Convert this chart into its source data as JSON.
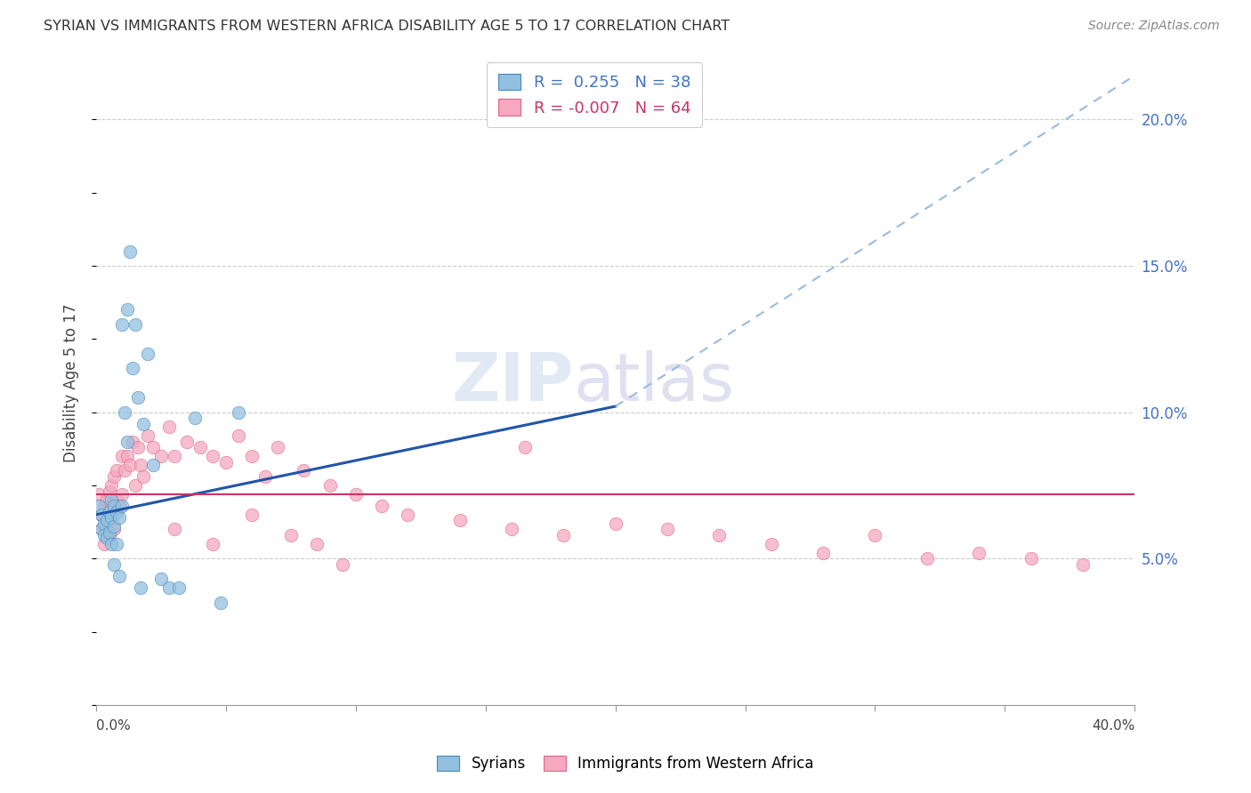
{
  "title": "SYRIAN VS IMMIGRANTS FROM WESTERN AFRICA DISABILITY AGE 5 TO 17 CORRELATION CHART",
  "source": "Source: ZipAtlas.com",
  "ylabel": "Disability Age 5 to 17",
  "y_ticks": [
    0.05,
    0.1,
    0.15,
    0.2
  ],
  "y_tick_labels": [
    "5.0%",
    "10.0%",
    "15.0%",
    "20.0%"
  ],
  "xlim": [
    0.0,
    0.4
  ],
  "ylim": [
    0.0,
    0.22
  ],
  "blue_line_start_x": 0.0,
  "blue_line_start_y": 0.065,
  "blue_line_end_solid_x": 0.2,
  "blue_line_end_solid_y": 0.102,
  "blue_line_end_dash_x": 0.4,
  "blue_line_end_dash_y": 0.215,
  "pink_line_y": 0.072,
  "blue_color": "#92c0e0",
  "pink_color": "#f5a8c0",
  "blue_edge": "#4488bb",
  "pink_edge": "#dd6688",
  "blue_line_color": "#2255aa",
  "pink_line_color": "#cc3366",
  "dashed_line_color": "#99bbdd",
  "syrians_x": [
    0.001,
    0.002,
    0.002,
    0.003,
    0.003,
    0.004,
    0.004,
    0.005,
    0.005,
    0.006,
    0.006,
    0.006,
    0.007,
    0.007,
    0.007,
    0.008,
    0.008,
    0.009,
    0.009,
    0.01,
    0.01,
    0.011,
    0.012,
    0.012,
    0.013,
    0.014,
    0.015,
    0.016,
    0.017,
    0.018,
    0.02,
    0.022,
    0.025,
    0.028,
    0.032,
    0.038,
    0.048,
    0.055
  ],
  "syrians_y": [
    0.068,
    0.065,
    0.06,
    0.062,
    0.058,
    0.063,
    0.057,
    0.066,
    0.059,
    0.07,
    0.064,
    0.055,
    0.068,
    0.061,
    0.048,
    0.066,
    0.055,
    0.064,
    0.044,
    0.13,
    0.068,
    0.1,
    0.135,
    0.09,
    0.155,
    0.115,
    0.13,
    0.105,
    0.04,
    0.096,
    0.12,
    0.082,
    0.043,
    0.04,
    0.04,
    0.098,
    0.035,
    0.1
  ],
  "immigrants_x": [
    0.001,
    0.002,
    0.002,
    0.003,
    0.003,
    0.004,
    0.004,
    0.005,
    0.005,
    0.006,
    0.006,
    0.007,
    0.007,
    0.008,
    0.008,
    0.009,
    0.01,
    0.01,
    0.011,
    0.012,
    0.013,
    0.014,
    0.015,
    0.016,
    0.017,
    0.018,
    0.02,
    0.022,
    0.025,
    0.028,
    0.03,
    0.035,
    0.04,
    0.045,
    0.05,
    0.055,
    0.06,
    0.065,
    0.07,
    0.08,
    0.09,
    0.1,
    0.11,
    0.12,
    0.14,
    0.16,
    0.18,
    0.2,
    0.22,
    0.24,
    0.26,
    0.28,
    0.3,
    0.32,
    0.34,
    0.36,
    0.38,
    0.165,
    0.06,
    0.075,
    0.085,
    0.095,
    0.045,
    0.03
  ],
  "immigrants_y": [
    0.072,
    0.065,
    0.06,
    0.068,
    0.055,
    0.07,
    0.062,
    0.073,
    0.058,
    0.075,
    0.065,
    0.078,
    0.06,
    0.08,
    0.07,
    0.068,
    0.085,
    0.072,
    0.08,
    0.085,
    0.082,
    0.09,
    0.075,
    0.088,
    0.082,
    0.078,
    0.092,
    0.088,
    0.085,
    0.095,
    0.085,
    0.09,
    0.088,
    0.085,
    0.083,
    0.092,
    0.085,
    0.078,
    0.088,
    0.08,
    0.075,
    0.072,
    0.068,
    0.065,
    0.063,
    0.06,
    0.058,
    0.062,
    0.06,
    0.058,
    0.055,
    0.052,
    0.058,
    0.05,
    0.052,
    0.05,
    0.048,
    0.088,
    0.065,
    0.058,
    0.055,
    0.048,
    0.055,
    0.06
  ]
}
